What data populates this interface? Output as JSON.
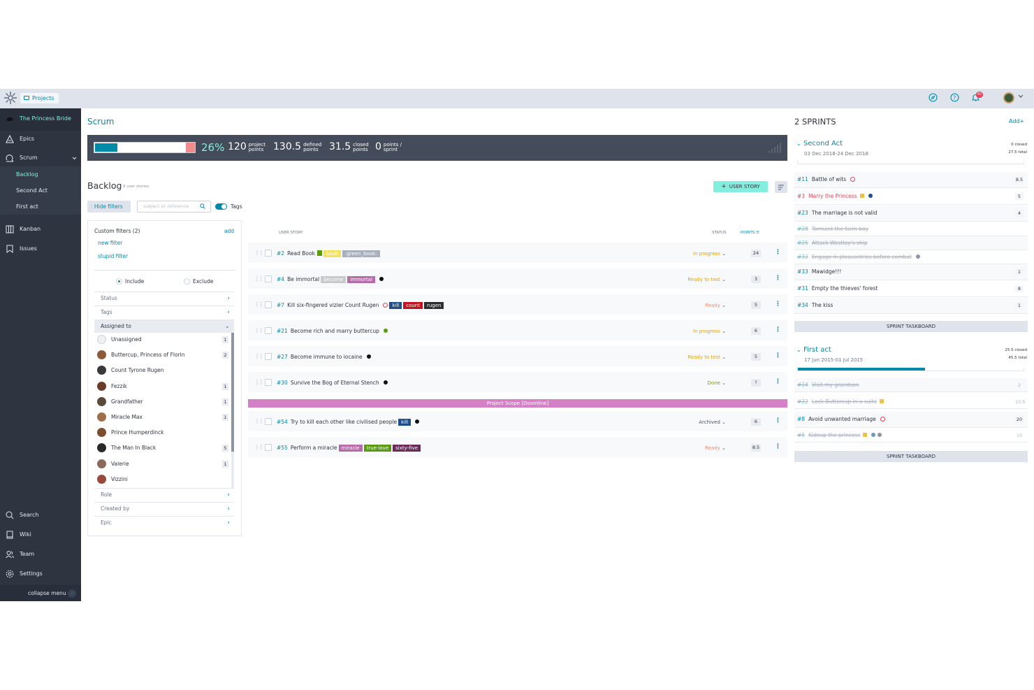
{
  "topbar": {
    "projects_label": "Projects",
    "notification_count": "42"
  },
  "sidebar": {
    "project_name": "The Princess Bride",
    "items": [
      {
        "label": "Epics",
        "icon": "epics-icon"
      },
      {
        "label": "Scrum",
        "icon": "scrum-icon"
      },
      {
        "label": "Kanban",
        "icon": "kanban-icon"
      },
      {
        "label": "Issues",
        "icon": "issues-icon"
      }
    ],
    "scrum_sub": [
      {
        "label": "Backlog"
      },
      {
        "label": "Second Act"
      },
      {
        "label": "First act"
      }
    ],
    "bottom_items": [
      {
        "label": "Search",
        "icon": "search-icon"
      },
      {
        "label": "Wiki",
        "icon": "wiki-icon"
      },
      {
        "label": "Team",
        "icon": "team-icon"
      },
      {
        "label": "Settings",
        "icon": "settings-icon"
      }
    ],
    "collapse_label": "collapse menu"
  },
  "page": {
    "title": "Scrum"
  },
  "summary": {
    "progress": 0.26,
    "percent": "26%",
    "project_points": "120",
    "project_points_label_1": "project",
    "project_points_label_2": "points",
    "defined_points": "130.5",
    "defined_points_label_1": "defined",
    "defined_points_label_2": "points",
    "closed_points": "31.5",
    "closed_points_label_1": "closed",
    "closed_points_label_2": "points",
    "sprint_points": "0",
    "sprint_points_label_1": "points /",
    "sprint_points_label_2": "sprint"
  },
  "backlog": {
    "title": "Backlog",
    "subtitle": "8 user stories",
    "add_story_label": "USER STORY",
    "hide_filters_label": "Hide filters",
    "search_placeholder": "subject or reference",
    "tags_label": "Tags",
    "col_user_story": "USER STORY",
    "col_status": "STATUS",
    "col_points": "POINTS",
    "doomline_label": "Project Scope [Doomline]"
  },
  "filters": {
    "custom_title": "Custom filters (2)",
    "add_label": "add",
    "custom": [
      "new filter",
      "stupid filter"
    ],
    "include_label": "Include",
    "exclude_label": "Exclude",
    "status_label": "Status",
    "tags_label": "Tags",
    "assigned_label": "Assigned to",
    "role_label": "Role",
    "created_label": "Created by",
    "epic_label": "Epic",
    "assignees": [
      {
        "name": "Unassigned",
        "count": "1",
        "color": "#f0f0f0"
      },
      {
        "name": "Buttercup, Princess of Florin",
        "count": "2",
        "color": "#8a5a3a"
      },
      {
        "name": "Count Tyrone Rugen",
        "count": "",
        "color": "#3a3a3a"
      },
      {
        "name": "Fezzik",
        "count": "1",
        "color": "#6a3a2a"
      },
      {
        "name": "Grandfather",
        "count": "1",
        "color": "#5a4a3a"
      },
      {
        "name": "Miracle Max",
        "count": "1",
        "color": "#a0704a"
      },
      {
        "name": "Prince Humperdinck",
        "count": "",
        "color": "#7a5030"
      },
      {
        "name": "The Man In Black",
        "count": "5",
        "color": "#2a2a2a"
      },
      {
        "name": "Valerie",
        "count": "1",
        "color": "#8a6a5a"
      },
      {
        "name": "Vizzini",
        "count": "",
        "color": "#9a4a3a"
      }
    ]
  },
  "stories": [
    {
      "ref": "#2",
      "subject": "Read Book",
      "status": "In progress",
      "status_color": "#e7a300",
      "points": "24",
      "tags": [
        {
          "label": "book",
          "color": "#f5e15a"
        },
        {
          "label": ":green_book:",
          "color": "#a7afbd"
        }
      ]
    },
    {
      "ref": "#4",
      "subject": "Be immortal",
      "status": "Ready to test",
      "status_color": "#e7a300",
      "points": "3",
      "tags": [
        {
          "label": "become",
          "color": "#c9c9c9"
        },
        {
          "label": "immortal",
          "color": "#b56ca8"
        }
      ]
    },
    {
      "ref": "#7",
      "subject": "Kill six-fingered vizier Count Rugen",
      "status": "Ready",
      "status_color": "#f08c6c",
      "points": "5",
      "tags": [
        {
          "label": "kill",
          "color": "#1f4e8c"
        },
        {
          "label": "count",
          "color": "#c0141e"
        },
        {
          "label": "rugen",
          "color": "#2e2e2e"
        }
      ]
    },
    {
      "ref": "#21",
      "subject": "Become rich and marry buttercup",
      "status": "In progress",
      "status_color": "#e7a300",
      "points": "6",
      "tags": []
    },
    {
      "ref": "#27",
      "subject": "Become immune to iocaine",
      "status": "Ready to test",
      "status_color": "#e7a300",
      "points": "5",
      "tags": []
    },
    {
      "ref": "#30",
      "subject": "Survive the Bog of Eternal Stench",
      "status": "Done",
      "status_color": "#7f9900",
      "points": "?",
      "tags": []
    },
    {
      "ref": "#54",
      "subject": "Try to kill each other like civilised people",
      "status": "Archived",
      "status_color": "#4c566a",
      "points": "6",
      "tags": [
        {
          "label": "kill",
          "color": "#1f4e8c"
        }
      ]
    },
    {
      "ref": "#55",
      "subject": "Perform a miracle",
      "status": "Ready",
      "status_color": "#f08c6c",
      "points": "8.5",
      "tags": [
        {
          "label": "miracle",
          "color": "#b56ca8"
        },
        {
          "label": "true-love",
          "color": "#5a9a10"
        },
        {
          "label": "sixty-five",
          "color": "#6a2a5a"
        }
      ]
    }
  ],
  "sprints": {
    "title": "2 SPRINTS",
    "add_label": "Add+",
    "taskboard_label": "SPRINT TASKBOARD",
    "list": [
      {
        "name": "Second Act",
        "dates": "03 Dec 2018-24 Dec 2018",
        "closed": "0 closed",
        "total": "27.5 total",
        "progress": 0.0,
        "items": [
          {
            "ref": "#11",
            "subject": "Battle of wits",
            "points": "8.5"
          },
          {
            "ref": "#3",
            "subject": "Marry the Princess",
            "points": "5"
          },
          {
            "ref": "#23",
            "subject": "The marriage is not valid",
            "points": "4"
          },
          {
            "ref": "#28",
            "subject": "Torment the farm boy",
            "points": ""
          },
          {
            "ref": "#25",
            "subject": "Attack Westley's ship",
            "points": ""
          },
          {
            "ref": "#32",
            "subject": "Engage in pleasantries before combat",
            "points": ""
          },
          {
            "ref": "#33",
            "subject": "Mawidge!!!",
            "points": "1"
          },
          {
            "ref": "#31",
            "subject": "Empty the thieves' forest",
            "points": "8"
          },
          {
            "ref": "#34",
            "subject": "The kiss",
            "points": "1"
          }
        ]
      },
      {
        "name": "First act",
        "dates": "17 Jun 2015-01 Jul 2015",
        "closed": "25.5 closed",
        "total": "45.5 total",
        "progress": 0.56,
        "items": [
          {
            "ref": "#24",
            "subject": "Visit my grandson",
            "points": "2"
          },
          {
            "ref": "#22",
            "subject": "Lock Buttercup in a suite",
            "points": "13.5"
          },
          {
            "ref": "#8",
            "subject": "Avoid unwanted marriage",
            "points": "20"
          },
          {
            "ref": "#5",
            "subject": "Kidnap the princess",
            "points": "10"
          }
        ]
      }
    ]
  }
}
